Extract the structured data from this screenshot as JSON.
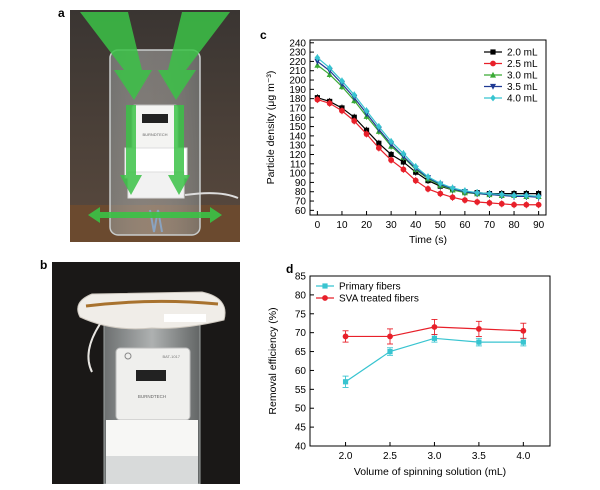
{
  "panels": {
    "a": "a",
    "b": "b",
    "c": "c",
    "d": "d"
  },
  "photo_a": {
    "device_text": "BURNDTECH"
  },
  "photo_b": {
    "device_text": "BURNDTECH",
    "device_id": "BAT-1017"
  },
  "chart_data": [
    {
      "type": "line",
      "panel": "c",
      "xlabel": "Time (s)",
      "ylabel": "Particle density (μg m⁻³)",
      "x": [
        0,
        5,
        10,
        15,
        20,
        25,
        30,
        35,
        40,
        45,
        50,
        55,
        60,
        65,
        70,
        75,
        80,
        85,
        90
      ],
      "xticks": [
        0,
        10,
        20,
        30,
        40,
        50,
        60,
        70,
        80,
        90
      ],
      "yticks": [
        60,
        70,
        80,
        90,
        100,
        110,
        120,
        130,
        140,
        150,
        160,
        170,
        180,
        190,
        200,
        210,
        220,
        230,
        240
      ],
      "xlim": [
        -3,
        93
      ],
      "ylim": [
        55,
        243
      ],
      "legend": "top-right",
      "series": [
        {
          "name": "2.0 mL",
          "color": "#000000",
          "marker": "square",
          "values": [
            181,
            177,
            170,
            160,
            146,
            132,
            120,
            112,
            101,
            92,
            86,
            82,
            80,
            79,
            78,
            78,
            78,
            78,
            78
          ]
        },
        {
          "name": "2.5 mL",
          "color": "#e8202a",
          "marker": "circle",
          "values": [
            179,
            175,
            167,
            156,
            142,
            127,
            114,
            104,
            92,
            83,
            78,
            74,
            71,
            69,
            68,
            67,
            66,
            66,
            66
          ]
        },
        {
          "name": "3.0 mL",
          "color": "#3aaa35",
          "marker": "triangle-up",
          "values": [
            216,
            206,
            193,
            178,
            161,
            145,
            129,
            117,
            104,
            94,
            87,
            82,
            79,
            78,
            77,
            76,
            76,
            75,
            75
          ]
        },
        {
          "name": "3.5 mL",
          "color": "#1f3a93",
          "marker": "triangle-down",
          "values": [
            220,
            210,
            196,
            181,
            164,
            147,
            131,
            118,
            105,
            95,
            88,
            83,
            80,
            78,
            77,
            76,
            75,
            75,
            74
          ]
        },
        {
          "name": "4.0 mL",
          "color": "#38c4d0",
          "marker": "diamond",
          "values": [
            224,
            213,
            199,
            184,
            167,
            150,
            134,
            121,
            107,
            96,
            89,
            84,
            81,
            79,
            78,
            77,
            76,
            76,
            75
          ]
        }
      ]
    },
    {
      "type": "line",
      "panel": "d",
      "xlabel": "Volume of spinning solution (mL)",
      "ylabel": "Removal efficiency (%)",
      "x": [
        2.0,
        2.5,
        3.0,
        3.5,
        4.0
      ],
      "xticks": [
        "2.0",
        "2.5",
        "3.0",
        "3.5",
        "4.0"
      ],
      "yticks": [
        40,
        45,
        50,
        55,
        60,
        65,
        70,
        75,
        80,
        85
      ],
      "xlim": [
        1.6,
        4.3
      ],
      "ylim": [
        40,
        85
      ],
      "legend": "top-left",
      "series": [
        {
          "name": "Primary fibers",
          "color": "#38c4d0",
          "marker": "square",
          "values": [
            57,
            65,
            68.5,
            67.5,
            67.5
          ],
          "errors": [
            1.5,
            1.0,
            1.0,
            1.0,
            1.0
          ]
        },
        {
          "name": "SVA treated fibers",
          "color": "#e8202a",
          "marker": "circle",
          "values": [
            69,
            69,
            71.5,
            71,
            70.5
          ],
          "errors": [
            1.5,
            2.0,
            2.0,
            2.0,
            2.0
          ]
        }
      ]
    }
  ]
}
